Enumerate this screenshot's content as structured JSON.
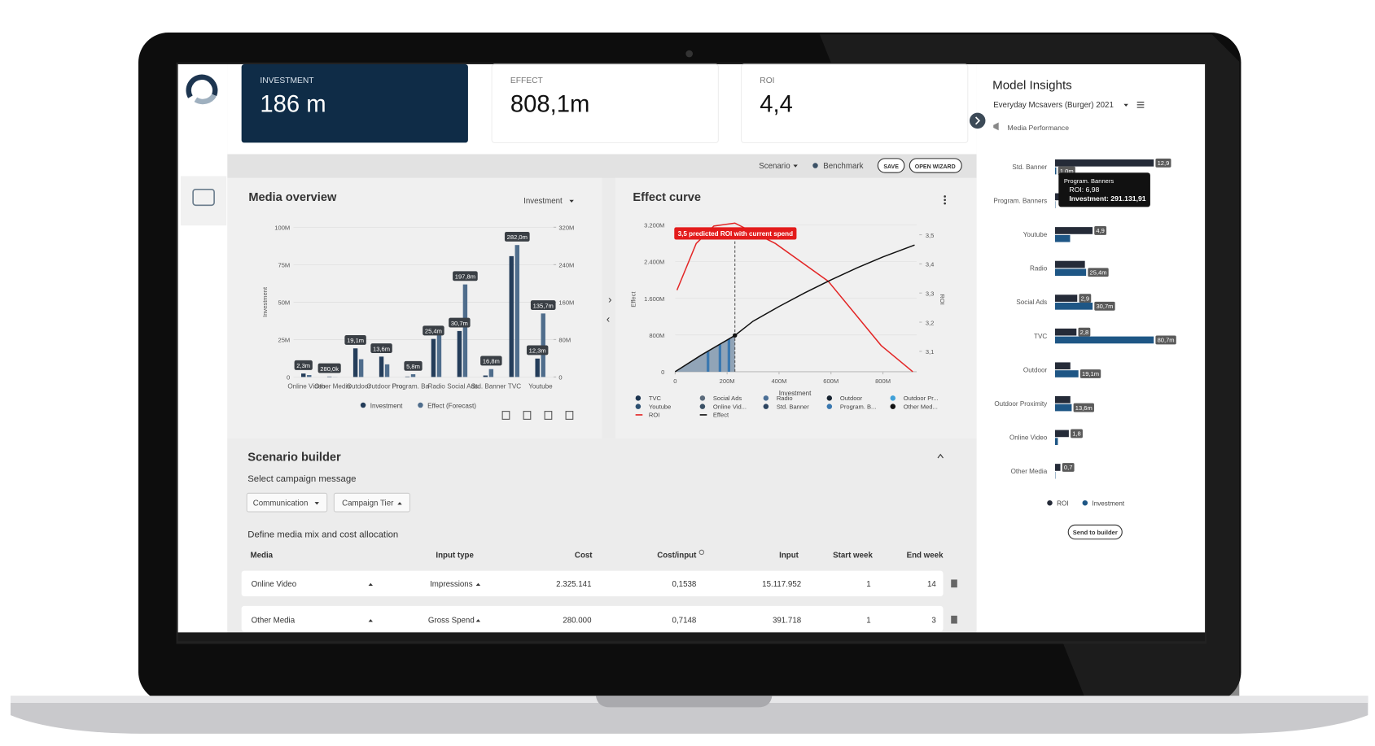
{
  "kpis": [
    {
      "label": "INVESTMENT",
      "value": "186 m"
    },
    {
      "label": "EFFECT",
      "value": "808,1m"
    },
    {
      "label": "ROI",
      "value": "4,4"
    }
  ],
  "toolbar": {
    "scenario": "Scenario",
    "benchmark": "Benchmark",
    "save": "SAVE",
    "wizard": "OPEN WIZARD"
  },
  "media_overview": {
    "title": "Media overview",
    "dropdown": "Investment"
  },
  "effect_curve": {
    "title": "Effect curve"
  },
  "model_insights": {
    "title": "Model Insights",
    "subtitle": "Everyday Mcsavers (Burger) 2021",
    "section": "Media Performance",
    "tooltip": {
      "title": "Program. Banners",
      "roi": "ROI: 6,98",
      "investment": "Investment: 291.131,91"
    },
    "button": "Send to builder"
  },
  "scenario_builder": {
    "title": "Scenario builder",
    "campaign_label": "Select campaign message",
    "dropdowns": [
      "Communication",
      "Campaign Tier"
    ],
    "mix_label": "Define media mix and cost allocation",
    "table": {
      "headers": [
        "Media",
        "Input type",
        "Cost",
        "Cost/input",
        "Input",
        "Start week",
        "End week"
      ],
      "rows": [
        [
          "Online Video",
          "Impressions",
          "2.325.141",
          "0,1538",
          "15.117.952",
          "1",
          "14"
        ],
        [
          "Other Media",
          "Gross Spend",
          "280.000",
          "0,7148",
          "391.718",
          "1",
          "3"
        ]
      ]
    }
  },
  "chart_data": [
    {
      "type": "bar",
      "y_label": "Investment",
      "categories": [
        "Online Video",
        "Other Media",
        "Outdoor",
        "Outdoor Pro",
        "Program. Ba",
        "Radio",
        "Social Ads",
        "Std. Banner",
        "TVC",
        "Youtube"
      ],
      "series": [
        {
          "name": "Investment",
          "color": "#243d5a",
          "values": [
            2.3,
            0.28,
            19.1,
            13.6,
            0.2911,
            25.4,
            30.7,
            1.0,
            80.7,
            12.3
          ],
          "value_labels": [
            "2,3m",
            "280,0k",
            "19,1m",
            "13,6m",
            null,
            "25,4m",
            "30,7m",
            null,
            null,
            "12,3m"
          ]
        },
        {
          "name": "Effect (Forecast)",
          "color": "#4f6d8c",
          "axis": "y2",
          "values": [
            4.1,
            0.2,
            38,
            27,
            5.8,
            90,
            197.8,
            16.8,
            282.0,
            135.7
          ],
          "value_labels": [
            null,
            null,
            null,
            null,
            "5,8m",
            null,
            "197,8m",
            "16,8m",
            "282,0m",
            "135,7m"
          ]
        }
      ],
      "ylim": [
        0,
        100
      ],
      "yticks": [
        0,
        {
          "value": 25,
          "label": "25M"
        },
        {
          "value": 50,
          "label": "50M"
        },
        {
          "value": 75,
          "label": "75M"
        },
        {
          "value": 100,
          "label": "100M"
        }
      ],
      "y2lim": [
        0,
        320
      ],
      "y2ticks": [
        0,
        {
          "value": 80,
          "label": "80M"
        },
        {
          "value": 160,
          "label": "160M"
        },
        {
          "value": 240,
          "label": "240M"
        },
        {
          "value": 320,
          "label": "320M"
        }
      ],
      "grid": true
    },
    {
      "type": "line",
      "x_label": "Investment",
      "y_label": "Effect",
      "y2_label": "ROI",
      "annotation": "3,5 predicted ROI with current spend",
      "xlim": [
        0,
        930
      ],
      "xticks": [
        0,
        {
          "value": 200,
          "label": "200M"
        },
        {
          "value": 400,
          "label": "400M"
        },
        {
          "value": 600,
          "label": "600M"
        },
        {
          "value": 800,
          "label": "800M"
        }
      ],
      "ylim": [
        0,
        3300
      ],
      "yticks": [
        0,
        {
          "value": 800,
          "label": "800M"
        },
        {
          "value": 1600,
          "label": "1.600M"
        },
        {
          "value": 2400,
          "label": "2.400M"
        },
        {
          "value": 3200,
          "label": "3.200M"
        }
      ],
      "y2lim": [
        3.03,
        3.55
      ],
      "y2ticks": [
        {
          "value": 3.1,
          "label": "3,1"
        },
        {
          "value": 3.2,
          "label": "3,2"
        },
        {
          "value": 3.3,
          "label": "3,3"
        },
        {
          "value": 3.4,
          "label": "3,4"
        },
        {
          "value": 3.5,
          "label": "3,5"
        }
      ],
      "series": [
        {
          "name": "ROI",
          "color": "#e32626",
          "axis": "y2",
          "x": [
            7,
            81,
            149,
            230,
            386,
            590,
            793,
            915
          ],
          "values": [
            3.31,
            3.47,
            3.53,
            3.54,
            3.47,
            3.34,
            3.12,
            3.03
          ]
        },
        {
          "name": "Effect",
          "color": "#111111",
          "x": [
            0,
            100,
            230,
            300,
            400,
            500,
            600,
            700,
            800,
            922
          ],
          "values": [
            0,
            360,
            790,
            1100,
            1420,
            1720,
            2000,
            2260,
            2500,
            2760
          ]
        }
      ],
      "media": [
        {
          "name": "TVC",
          "color": "#1d3550"
        },
        {
          "name": "Youtube",
          "color": "#2c4f70"
        },
        {
          "name": "Social Ads",
          "color": "#5b6b7c"
        },
        {
          "name": "Online Vid...",
          "color": "#3b5166"
        },
        {
          "name": "Radio",
          "color": "#4b6f96"
        },
        {
          "name": "Std. Banner",
          "color": "#2c4460"
        },
        {
          "name": "Outdoor",
          "color": "#1a2633"
        },
        {
          "name": "Program. B...",
          "color": "#3a78b0"
        },
        {
          "name": "Outdoor Pr...",
          "color": "#3fa0d8"
        },
        {
          "name": "Other Med...",
          "color": "#111111"
        }
      ],
      "grid": true
    },
    {
      "type": "hbar",
      "categories": [
        "Std. Banner",
        "Program. Banners",
        "Youtube",
        "Radio",
        "Social Ads",
        "TVC",
        "Outdoor",
        "Outdoor Proximity",
        "Online Video",
        "Other Media"
      ],
      "series": [
        {
          "name": "ROI",
          "color": "#252b38",
          "values": [
            12.9,
            6.98,
            4.9,
            3.9,
            2.9,
            2.8,
            2.0,
            2.0,
            1.8,
            0.7
          ],
          "value_labels": [
            "12,9",
            null,
            "4,9",
            null,
            "2,9",
            "2,8",
            null,
            null,
            "1,8",
            "0,7"
          ]
        },
        {
          "name": "Investment",
          "color": "#1e5685",
          "values": [
            1.0,
            0.2911,
            12.3,
            25.4,
            30.7,
            80.7,
            19.1,
            13.6,
            2.3,
            0.28
          ],
          "value_labels": [
            "1,0m",
            null,
            null,
            "25,4m",
            "30,7m",
            "80,7m",
            "19,1m",
            "13,6m",
            null,
            null
          ]
        }
      ]
    }
  ]
}
